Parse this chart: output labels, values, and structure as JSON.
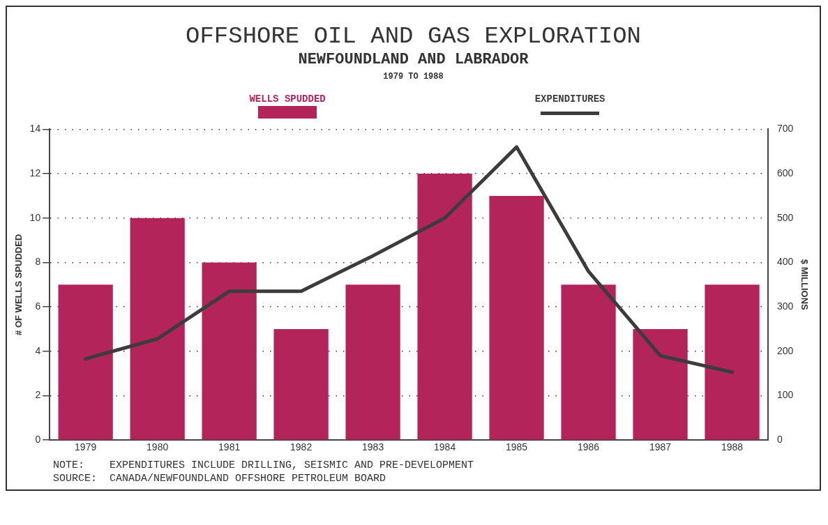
{
  "chart_data": {
    "type": "bar",
    "title": "OFFSHORE OIL AND GAS EXPLORATION",
    "subtitle": "NEWFOUNDLAND AND LABRADOR",
    "annotations": [
      "1979 TO 1988",
      "NOTE:    EXPENDITURES INCLUDE DRILLING, SEISMIC AND PRE-DEVELOPMENT",
      "SOURCE:  CANADA/NEWFOUNDLAND OFFSHORE PETROLEUM BOARD"
    ],
    "categories": [
      "1979",
      "1980",
      "1981",
      "1982",
      "1983",
      "1984",
      "1985",
      "1986",
      "1987",
      "1988"
    ],
    "series": [
      {
        "name": "WELLS SPUDDED",
        "color": "#b3245a",
        "values": [
          7,
          10,
          8,
          5,
          7,
          12,
          11,
          7,
          5,
          7
        ]
      },
      {
        "name": "EXPENDITURES",
        "type": "line",
        "axis": "y2",
        "color": "#3c3c3c",
        "values": [
          183,
          228,
          335,
          335,
          415,
          500,
          660,
          380,
          190,
          153
        ]
      }
    ],
    "ylabel": "# OF WELLS SPUDDED",
    "y2label": "$ MILLIONS",
    "ylim": [
      0,
      14
    ],
    "yticks": [
      0,
      2,
      4,
      6,
      8,
      10,
      12,
      14
    ],
    "y2lim": [
      0,
      700
    ],
    "y2ticks": [
      0,
      100,
      200,
      300,
      400,
      500,
      600,
      700
    ],
    "grid": "y",
    "legend": "top",
    "marker": "none",
    "line_style": "solid"
  }
}
